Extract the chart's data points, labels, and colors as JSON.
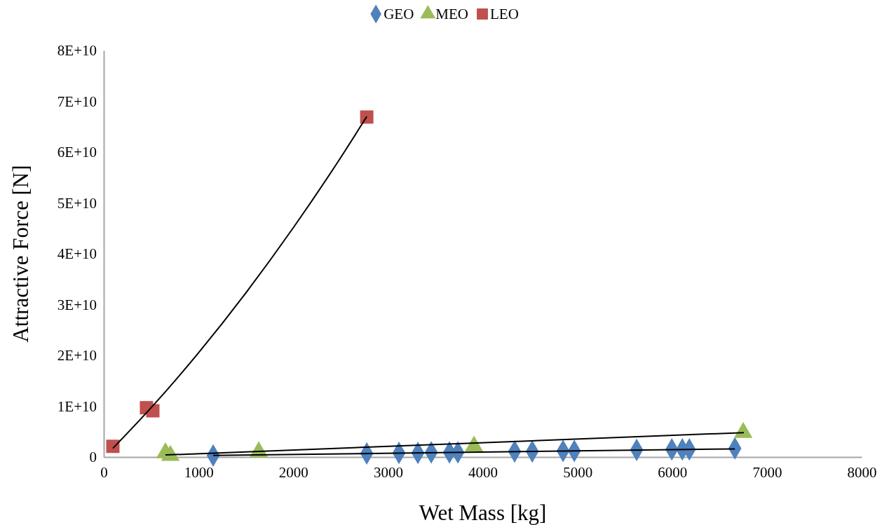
{
  "chart_data": {
    "type": "scatter",
    "xlabel": "Wet Mass [kg]",
    "ylabel": "Attractive Force [N]",
    "xlim": [
      0,
      8000
    ],
    "xticks": [
      0,
      1000,
      2000,
      3000,
      4000,
      5000,
      6000,
      7000,
      8000
    ],
    "ylim": [
      0,
      80000000000
    ],
    "yticks": [
      {
        "value": 0,
        "label": "0"
      },
      {
        "value": 10000000000,
        "label": "1E+10"
      },
      {
        "value": 20000000000,
        "label": "2E+10"
      },
      {
        "value": 30000000000,
        "label": "3E+10"
      },
      {
        "value": 40000000000,
        "label": "4E+10"
      },
      {
        "value": 50000000000,
        "label": "5E+10"
      },
      {
        "value": 60000000000,
        "label": "6E+10"
      },
      {
        "value": 70000000000,
        "label": "7E+10"
      },
      {
        "value": 80000000000,
        "label": "8E+10"
      }
    ],
    "grid": false,
    "legend": "top",
    "series": [
      {
        "name": "GEO",
        "color": "#4f81bd",
        "marker": "diamond",
        "x": [
          1155,
          2776,
          3116,
          3316,
          3457,
          3649,
          3738,
          4337,
          4523,
          4848,
          4967,
          5625,
          5996,
          6107,
          6181,
          6662
        ],
        "values": [
          300000000,
          700000000,
          800000000,
          800000000,
          900000000,
          900000000,
          900000000,
          1100000000,
          1100000000,
          1200000000,
          1200000000,
          1400000000,
          1500000000,
          1500000000,
          1500000000,
          1700000000
        ]
      },
      {
        "name": "MEO",
        "color": "#9bbb59",
        "marker": "triangle",
        "x": [
          651,
          703,
          1636,
          3908,
          6750
        ],
        "values": [
          800000000,
          300000000,
          1000000000,
          2100000000,
          4800000000
        ]
      },
      {
        "name": "LEO",
        "color": "#c0504d",
        "marker": "square",
        "x": [
          96,
          451,
          518,
          2776
        ],
        "values": [
          2100000000,
          9700000000,
          9100000000,
          66900000000
        ]
      },
      {
        "type": "line",
        "color": "#000000",
        "marker": "none",
        "line_style": "solid",
        "x": [
          1155,
          6662
        ],
        "values": [
          300000000,
          1600000000
        ]
      },
      {
        "type": "line",
        "color": "#000000",
        "marker": "none",
        "line_style": "solid",
        "x": [
          651,
          6757
        ],
        "values": [
          400000000,
          4800000000
        ]
      },
      {
        "type": "line",
        "color": "#000000",
        "marker": "none",
        "line_style": "solid",
        "x": [
          96,
          500,
          1000,
          1500,
          2000,
          2500,
          2776
        ],
        "values": [
          1700000000,
          9700000000,
          20500000000,
          32300000000,
          45100000000,
          58900000000,
          67000000000
        ]
      }
    ]
  }
}
